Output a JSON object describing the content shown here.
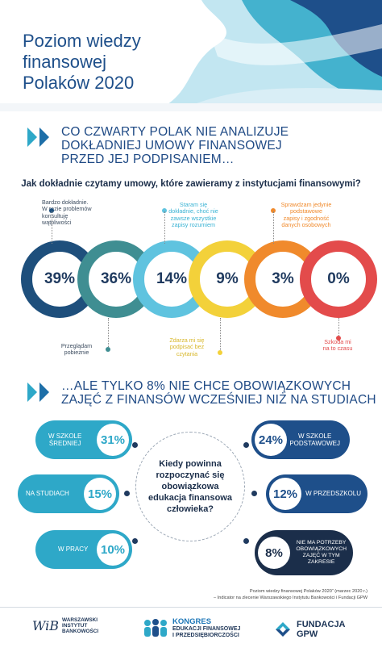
{
  "header": {
    "title": "Poziom wiedzy\nfinansowej\nPolaków 2020"
  },
  "section1": {
    "heading": "CO CZWARTY POLAK NIE ANALIZUJE\nDOKŁADNIEJ UMOWY FINANSOWEJ\nPRZED JEJ PODPISANIEM…",
    "question": "Jak dokładnie czytamy umowy, które zawieramy z instytucjami finansowymi?",
    "items": [
      {
        "pct": "39%",
        "color": "#1e4f7c",
        "label": "Bardzo dokładnie.\nW razie problemów\nkonsultuję\nwątpliwości",
        "position": "top"
      },
      {
        "pct": "36%",
        "color": "#3f8e92",
        "label": "Przeglądam\npobieżnie",
        "position": "bottom"
      },
      {
        "pct": "14%",
        "color": "#5fc3df",
        "label": "Staram się\ndokładnie, choć nie\nzawsze wszystkie\nzapisy rozumiem",
        "position": "top"
      },
      {
        "pct": "9%",
        "color": "#f3d13a",
        "label": "Zdarza mi się\npodpisać bez\nczytania",
        "position": "bottom"
      },
      {
        "pct": "3%",
        "color": "#f08a2c",
        "label": "Sprawdzam jedynie\npodstawowe\nzapisy i zgodność\ndanych osobowych",
        "position": "top"
      },
      {
        "pct": "0%",
        "color": "#e34b4b",
        "label": "Szkoda mi\nna to czasu",
        "position": "bottom"
      }
    ]
  },
  "section2": {
    "heading": "…ALE TYLKO 8% NIE CHCE OBOWIĄZKOWYCH\nZAJĘĆ Z FINANSÓW WCZEŚNIEJ NIŻ NA STUDIACH",
    "question": "Kiedy powinna\nrozpoczynać się\nobowiązkowa\nedukacja finansowa\nczłowieka?",
    "left": [
      {
        "label": "W SZKOLE\nŚREDNIEJ",
        "pct": "31%",
        "color": "#2ea8c8"
      },
      {
        "label": "NA STUDIACH",
        "pct": "15%",
        "color": "#2ea8c8"
      },
      {
        "label": "W PRACY",
        "pct": "10%",
        "color": "#2ea8c8"
      }
    ],
    "right": [
      {
        "label": "W SZKOLE\nPODSTAWOWEJ",
        "pct": "24%",
        "color": "#1e4f8a"
      },
      {
        "label": "W PRZEDSZKOLU",
        "pct": "12%",
        "color": "#1e4f8a"
      },
      {
        "label": "NIE MA POTRZEBY\nOBOWIĄZKOWYCH\nZAJĘĆ W TYM\nZAKRESIE",
        "pct": "8%",
        "color": "#1b2e4a"
      }
    ]
  },
  "source": "Poziom wiedzy finansowej Polaków 2020” (marzec 2020 r.)\n– Indicator na zlecenie Warszawskiego Instytutu Bankowości i Fundacji GPW",
  "footer": {
    "wib_sig": "WiB",
    "wib_text": "WARSZAWSKI\nINSTYTUT\nBANKOWOŚCI",
    "kongres_title": "KONGRES",
    "kongres_sub": "EDUKACJI FINANSOWEJ\nI PRZEDSIĘBIORCZOŚCI",
    "gpw_text": "FUNDACJA\nGPW"
  },
  "colors": {
    "navy": "#1f3a5f",
    "teal": "#2ea8c8",
    "blue": "#1e4f8a"
  }
}
